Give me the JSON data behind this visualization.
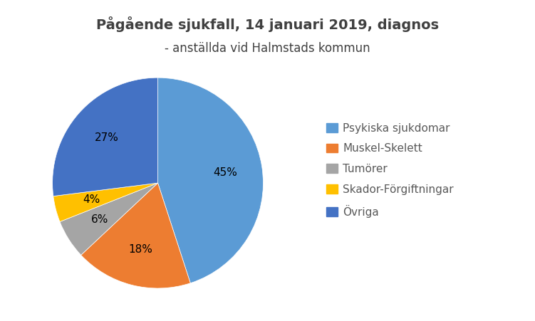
{
  "title_line1": "Pågående sjukfall, 14 januari 2019, diagnos",
  "title_line2": "- anställda vid Halmstads kommun",
  "slices": [
    45,
    18,
    6,
    4,
    27
  ],
  "labels": [
    "Psykiska sjukdomar",
    "Muskel-Skelett",
    "Tumörer",
    "Skador-Förgiftningar",
    "Övriga"
  ],
  "colors": [
    "#5B9BD5",
    "#ED7D31",
    "#A5A5A5",
    "#FFC000",
    "#4472C4"
  ],
  "pct_labels": [
    "45%",
    "18%",
    "6%",
    "4%",
    "27%"
  ],
  "startangle": 90,
  "background_color": "#FFFFFF",
  "title_fontsize": 14,
  "subtitle_fontsize": 12,
  "label_fontsize": 11,
  "legend_fontsize": 11
}
